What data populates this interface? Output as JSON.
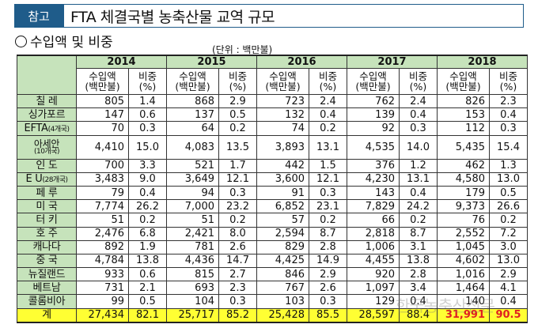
{
  "header": {
    "badge": "참고",
    "title": "FTA 체결국별 농축산물 교역 규모"
  },
  "section": {
    "marker": "○",
    "title": "수입액 및 비중"
  },
  "unit_note": "(단위 : 백만불)",
  "table": {
    "years": [
      "2014",
      "2015",
      "2016",
      "2017",
      "2018"
    ],
    "col_import": [
      "수입액",
      "(백만불)"
    ],
    "col_share": [
      "비중",
      "(%)"
    ],
    "rows": [
      {
        "country": "칠 레",
        "values": [
          "805",
          "1.4",
          "868",
          "2.9",
          "723",
          "2.4",
          "762",
          "2.4",
          "826",
          "2.3"
        ]
      },
      {
        "country": "싱가포르",
        "values": [
          "147",
          "0.6",
          "137",
          "0.5",
          "132",
          "0.4",
          "139",
          "0.4",
          "153",
          "0.4"
        ]
      },
      {
        "country": "EFTA",
        "country_note": "(4개국)",
        "values": [
          "70",
          "0.3",
          "64",
          "0.2",
          "74",
          "0.2",
          "92",
          "0.3",
          "112",
          "0.3"
        ]
      },
      {
        "country": "아세안",
        "country_note": "(10개국)",
        "values": [
          "4,410",
          "15.0",
          "4,083",
          "13.5",
          "3,893",
          "13.1",
          "4,535",
          "14.0",
          "5,435",
          "15.4"
        ]
      },
      {
        "country": "인 도",
        "values": [
          "700",
          "3.3",
          "521",
          "1.7",
          "442",
          "1.5",
          "376",
          "1.2",
          "462",
          "1.3"
        ]
      },
      {
        "country": "E U",
        "country_note": "(28개국)",
        "values": [
          "3,483",
          "9.0",
          "3,649",
          "12.1",
          "3,600",
          "12.1",
          "4,230",
          "13.1",
          "4,580",
          "13.0"
        ]
      },
      {
        "country": "페 루",
        "values": [
          "79",
          "0.4",
          "94",
          "0.3",
          "91",
          "0.3",
          "143",
          "0.4",
          "179",
          "0.5"
        ]
      },
      {
        "country": "미 국",
        "values": [
          "7,774",
          "26.2",
          "7,000",
          "23.2",
          "6,852",
          "23.1",
          "7,829",
          "24.2",
          "9,373",
          "26.6"
        ]
      },
      {
        "country": "터 키",
        "values": [
          "51",
          "0.2",
          "51",
          "0.2",
          "57",
          "0.2",
          "66",
          "0.2",
          "76",
          "0.2"
        ]
      },
      {
        "country": "호 주",
        "values": [
          "2,476",
          "6.8",
          "2,421",
          "8.0",
          "2,594",
          "8.7",
          "2,818",
          "8.7",
          "2,552",
          "7.2"
        ]
      },
      {
        "country": "캐나다",
        "values": [
          "892",
          "1.9",
          "781",
          "2.6",
          "829",
          "2.8",
          "1,006",
          "3.1",
          "1,045",
          "3.0"
        ]
      },
      {
        "country": "중 국",
        "values": [
          "4,784",
          "13.8",
          "4,436",
          "14.7",
          "4,425",
          "14.9",
          "4,455",
          "13.8",
          "4,602",
          "13.0"
        ]
      },
      {
        "country": "뉴질랜드",
        "values": [
          "933",
          "0.6",
          "815",
          "2.7",
          "846",
          "2.9",
          "920",
          "2.8",
          "1,016",
          "2.9"
        ]
      },
      {
        "country": "베트남",
        "values": [
          "731",
          "2.1",
          "693",
          "2.3",
          "767",
          "2.6",
          "1,097",
          "3.4",
          "1,464",
          "4.1"
        ]
      },
      {
        "country": "콜롬비아",
        "values": [
          "99",
          "0.5",
          "104",
          "0.3",
          "103",
          "0.3",
          "129",
          "0.4",
          "140",
          "0.4"
        ]
      }
    ],
    "total": {
      "country": "계",
      "values": [
        "27,434",
        "82.1",
        "25,717",
        "85.2",
        "25,428",
        "85.5",
        "28,597",
        "88.4",
        "31,991",
        "90.5"
      ]
    }
  },
  "watermark": "한국농축산신문",
  "colors": {
    "header_fill": "#c6e3bb",
    "badge": "#1f5c8a",
    "total_fill": "#ffff33",
    "highlight_text": "#e02020"
  }
}
